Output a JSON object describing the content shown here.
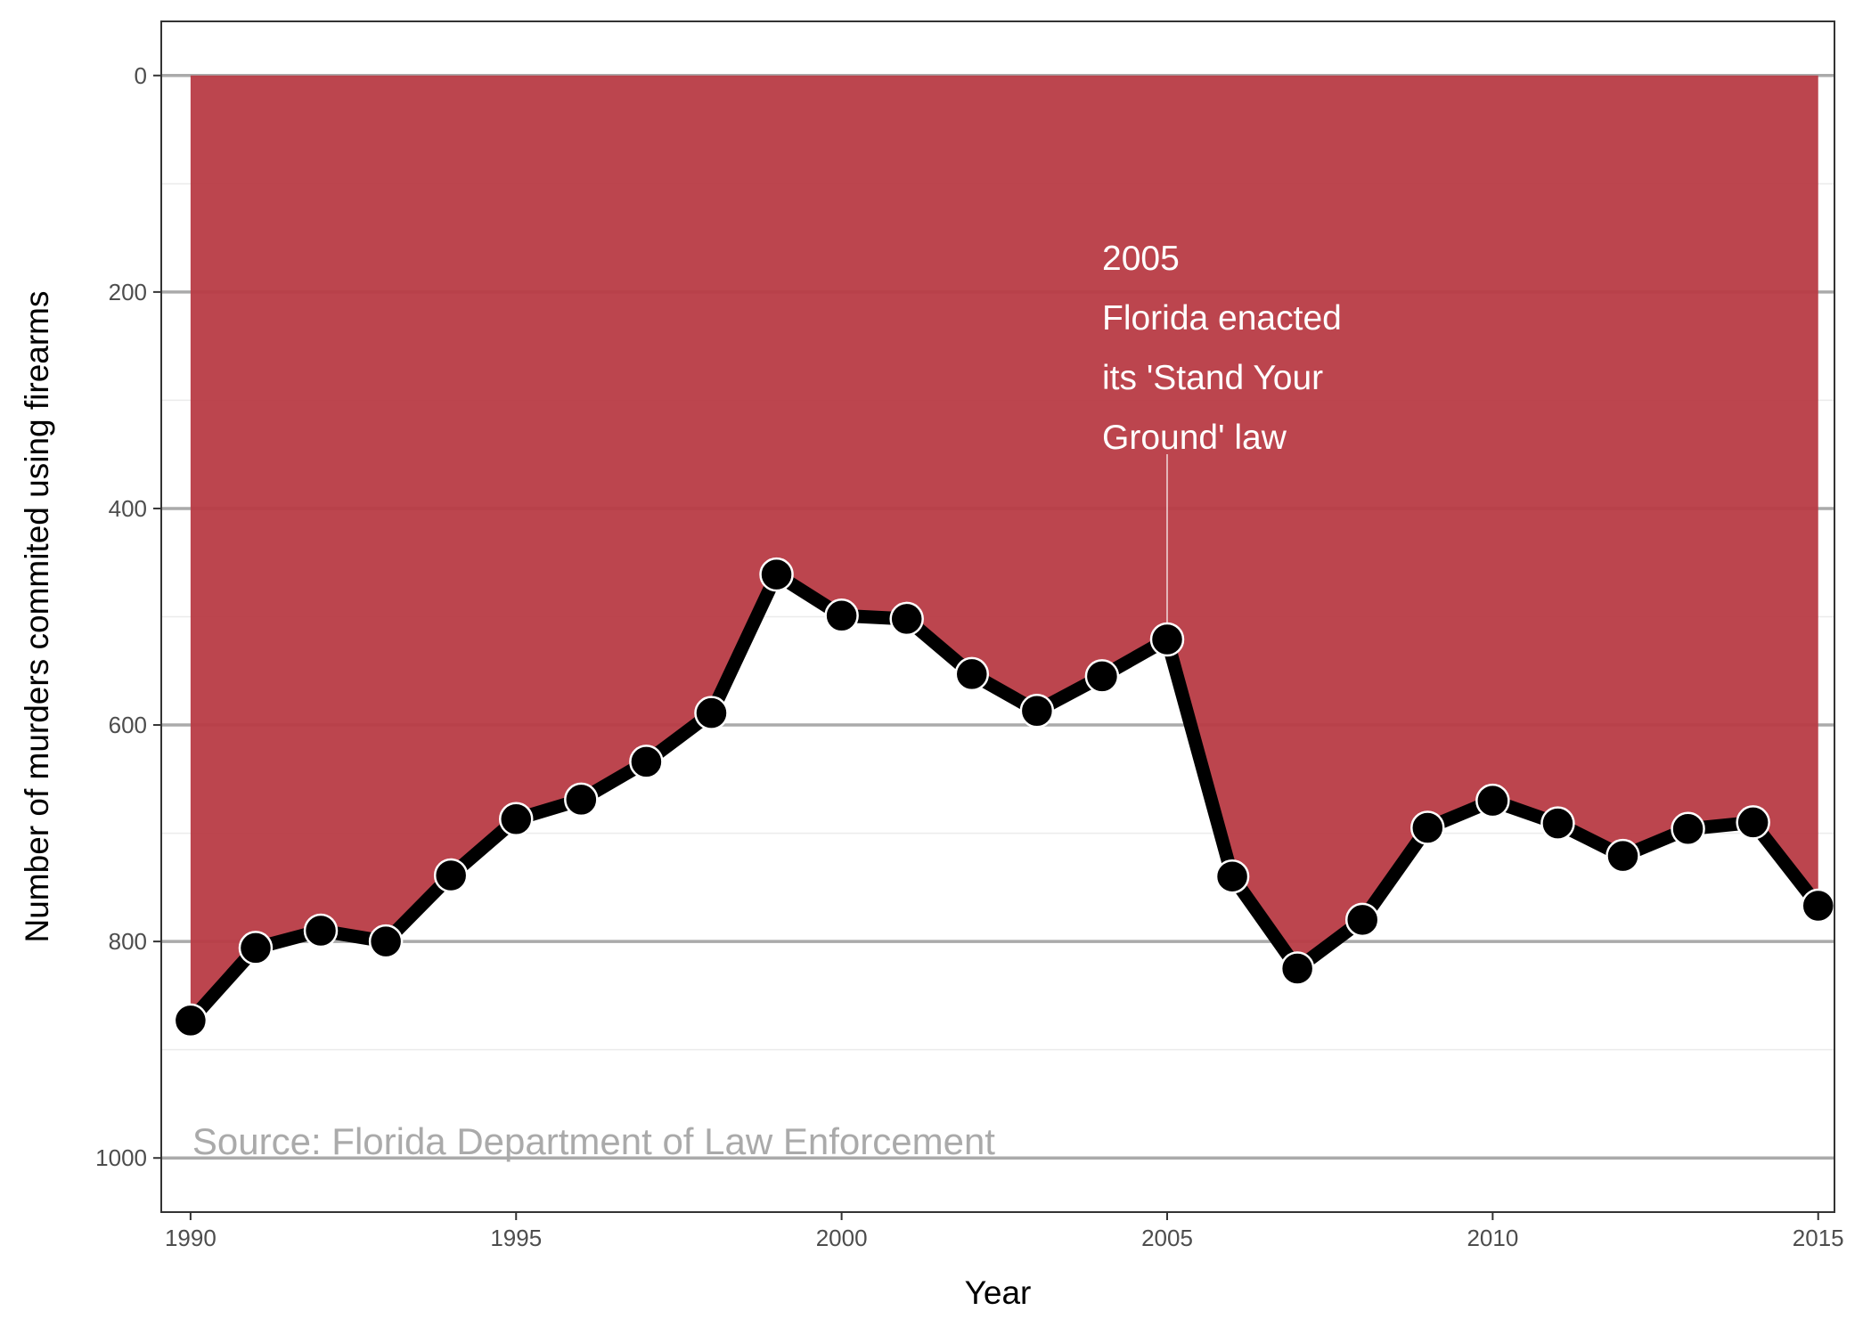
{
  "chart_data": {
    "type": "area",
    "xlabel": "Year",
    "ylabel": "Number of murders commited using firearms",
    "xlim": [
      1989.55,
      2015.25
    ],
    "ylim": [
      1050,
      -50
    ],
    "y_reversed": true,
    "x_ticks": [
      1990,
      1995,
      2000,
      2005,
      2010,
      2015
    ],
    "y_ticks": [
      0,
      200,
      400,
      600,
      800,
      1000
    ],
    "grid": true,
    "legend": "none",
    "x": [
      1990,
      1991,
      1992,
      1993,
      1994,
      1995,
      1996,
      1997,
      1998,
      1999,
      2000,
      2001,
      2002,
      2003,
      2004,
      2005,
      2006,
      2007,
      2008,
      2009,
      2010,
      2011,
      2012,
      2013,
      2014,
      2015
    ],
    "series": [
      {
        "values": [
          873,
          806,
          790,
          800,
          739,
          687,
          669,
          634,
          589,
          461,
          499,
          502,
          553,
          587,
          555,
          521,
          740,
          825,
          780,
          695,
          670,
          691,
          721,
          696,
          690,
          767
        ]
      }
    ],
    "annotation": {
      "x": 2005,
      "lines": [
        "2005",
        "Florida enacted",
        "its 'Stand Your",
        "Ground' law"
      ]
    },
    "source": "Source: Florida Department of Law Enforcement",
    "colors": {
      "fill": "#b83b44",
      "line": "#000000",
      "grid_major": "#aaaaaa",
      "grid_minor": "#ebebeb",
      "source_text": "#aaaaaa"
    }
  }
}
